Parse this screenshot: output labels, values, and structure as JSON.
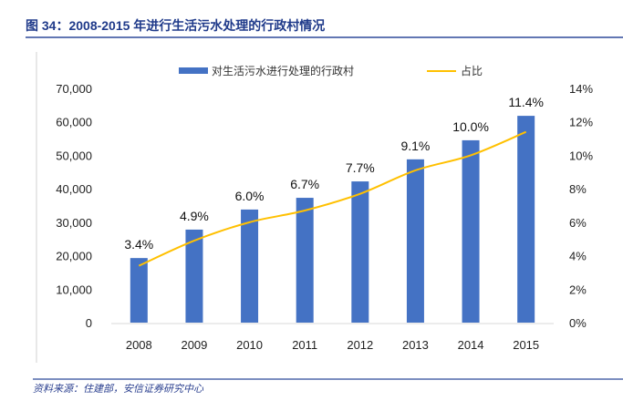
{
  "title": "图 34：2008-2015 年进行生活污水处理的行政村情况",
  "source": "资料来源：住建部，安信证券研究中心",
  "chart_data": {
    "type": "bar+line",
    "categories": [
      "2008",
      "2009",
      "2010",
      "2011",
      "2012",
      "2013",
      "2014",
      "2015"
    ],
    "series": [
      {
        "name": "对生活污水进行处理的行政村",
        "type": "bar",
        "axis": "left",
        "color": "#4472c4",
        "values": [
          19300,
          27800,
          33800,
          37300,
          42200,
          48800,
          54500,
          61800
        ]
      },
      {
        "name": "占比",
        "type": "line",
        "axis": "right",
        "color": "#ffc000",
        "values": [
          3.4,
          4.9,
          6.0,
          6.7,
          7.7,
          9.1,
          10.0,
          11.4
        ],
        "data_labels": [
          "3.4%",
          "4.9%",
          "6.0%",
          "6.7%",
          "7.7%",
          "9.1%",
          "10.0%",
          "11.4%"
        ]
      }
    ],
    "left_axis": {
      "ylim": [
        0,
        70000
      ],
      "ticks": [
        "0",
        "10,000",
        "20,000",
        "30,000",
        "40,000",
        "50,000",
        "60,000",
        "70,000"
      ]
    },
    "right_axis": {
      "ylim": [
        0,
        14
      ],
      "ticks": [
        "0%",
        "2%",
        "4%",
        "6%",
        "8%",
        "10%",
        "12%",
        "14%"
      ]
    },
    "legend_position": "top",
    "grid": false
  }
}
